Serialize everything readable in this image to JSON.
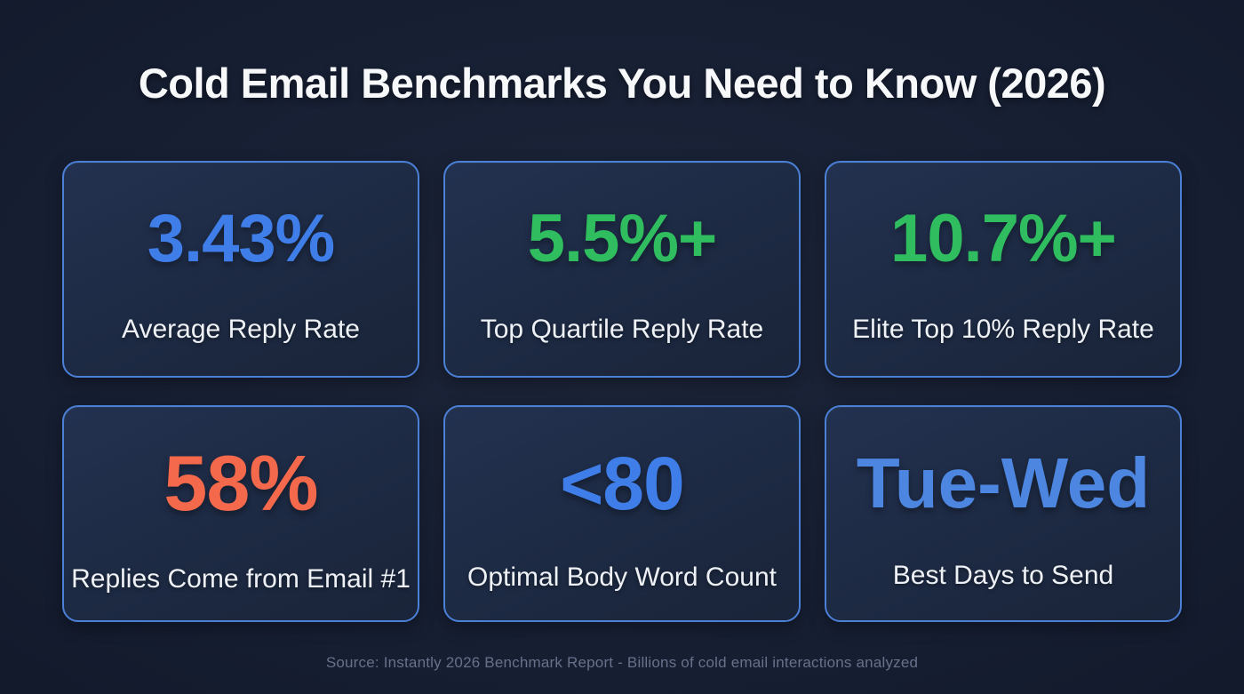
{
  "title": "Cold Email Benchmarks You Need to Know (2026)",
  "source_line": "Source: Instantly 2026 Benchmark Report - Billions of cold email interactions analyzed",
  "colors": {
    "background": "#151d31",
    "card_background": "#1e2a42",
    "card_border": "#4b80d7",
    "blue": "#3f7ee8",
    "blue_light": "#4d86e0",
    "green": "#2fbd5f",
    "orange": "#f4694b",
    "text_white": "#eef1f5",
    "source_gray": "#68718a"
  },
  "cards": [
    {
      "value": "3.43%",
      "label": "Average Reply Rate",
      "value_color": "#3f7ee8"
    },
    {
      "value": "5.5%+",
      "label": "Top Quartile Reply Rate",
      "value_color": "#2fbd5f"
    },
    {
      "value": "10.7%+",
      "label": "Elite Top 10% Reply Rate",
      "value_color": "#2fbd5f"
    },
    {
      "value": "58%",
      "label": "Replies Come from Email #1",
      "value_color": "#f4694b"
    },
    {
      "value": "<80",
      "label": "Optimal Body Word Count",
      "value_color": "#3f7ee8"
    },
    {
      "value": "Tue-Wed",
      "label": "Best Days to Send",
      "value_color": "#4d86e0"
    }
  ],
  "chart_data": {
    "type": "table",
    "title": "Cold Email Benchmarks You Need to Know (2026)",
    "metrics": [
      {
        "metric": "Average Reply Rate",
        "value": "3.43%"
      },
      {
        "metric": "Top Quartile Reply Rate",
        "value": "5.5%+"
      },
      {
        "metric": "Elite Top 10% Reply Rate",
        "value": "10.7%+"
      },
      {
        "metric": "Replies Come from Email #1",
        "value": "58%"
      },
      {
        "metric": "Optimal Body Word Count",
        "value": "<80"
      },
      {
        "metric": "Best Days to Send",
        "value": "Tue-Wed"
      }
    ],
    "source": "Instantly 2026 Benchmark Report - Billions of cold email interactions analyzed",
    "layout": "3x2 grid of stat cards on dark navy background"
  }
}
